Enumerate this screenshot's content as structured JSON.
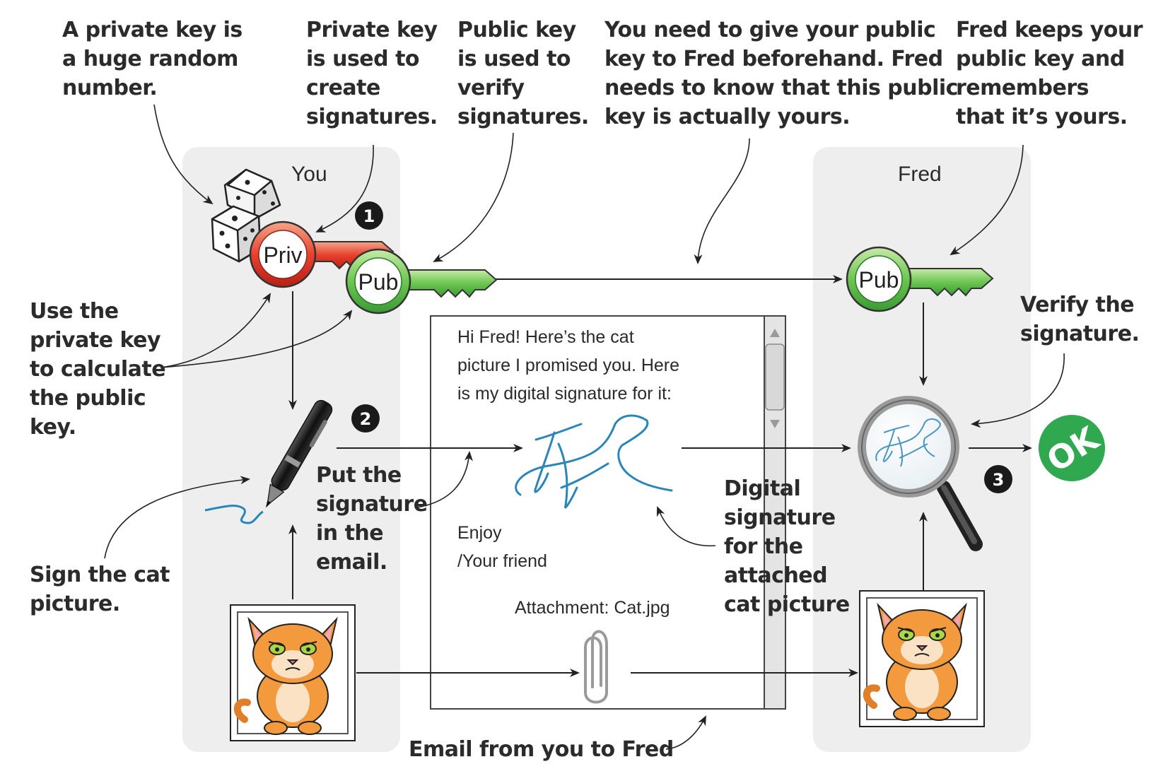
{
  "panels": {
    "you": "You",
    "fred": "Fred"
  },
  "keys": {
    "priv": "Priv",
    "pub": "Pub",
    "fred_pub": "Pub"
  },
  "steps": [
    "1",
    "2",
    "3"
  ],
  "notes": {
    "private_key_random": "A private key is\na huge random\nnumber.",
    "private_key_signs": "Private key\nis used to\ncreate\nsignatures.",
    "public_key_verifies": "Public key\nis used to\nverify\nsignatures.",
    "give_public_key": "You need to give your public\nkey to Fred beforehand. Fred\nneeds to know that this public\nkey is actually yours.",
    "fred_keeps": "Fred keeps your\npublic key and\nremembers\nthat it’s yours.",
    "calc_public": "Use the\nprivate key\nto calculate\nthe public\nkey.",
    "verify": "Verify the\nsignature.",
    "put_signature": "Put the\nsignature\nin the\nemail.",
    "digital_signature": "Digital\nsignature\nfor the\nattached\ncat picture",
    "sign_cat": "Sign the cat\npicture.",
    "email_caption": "Email from you to Fred"
  },
  "email": {
    "body": "Hi Fred! Here’s the cat\npicture I promised you. Here\nis my digital signature for it:",
    "closing": "Enjoy\n/Your friend",
    "attachment": "Attachment: Cat.jpg"
  },
  "ok_badge": "OK",
  "icons": [
    "dice-icon",
    "private-key-icon",
    "public-key-icon",
    "pen-icon",
    "cat-picture-icon",
    "paperclip-icon",
    "magnifier-icon",
    "ok-badge-icon",
    "scroll-up-icon",
    "scroll-down-icon"
  ],
  "colors": {
    "panel_bg": "#eeeeee",
    "private_key": "#e0322a",
    "public_key": "#5cbf4a",
    "signature": "#2a86b8",
    "ok": "#2fa84f",
    "cat": "#f0943a"
  }
}
